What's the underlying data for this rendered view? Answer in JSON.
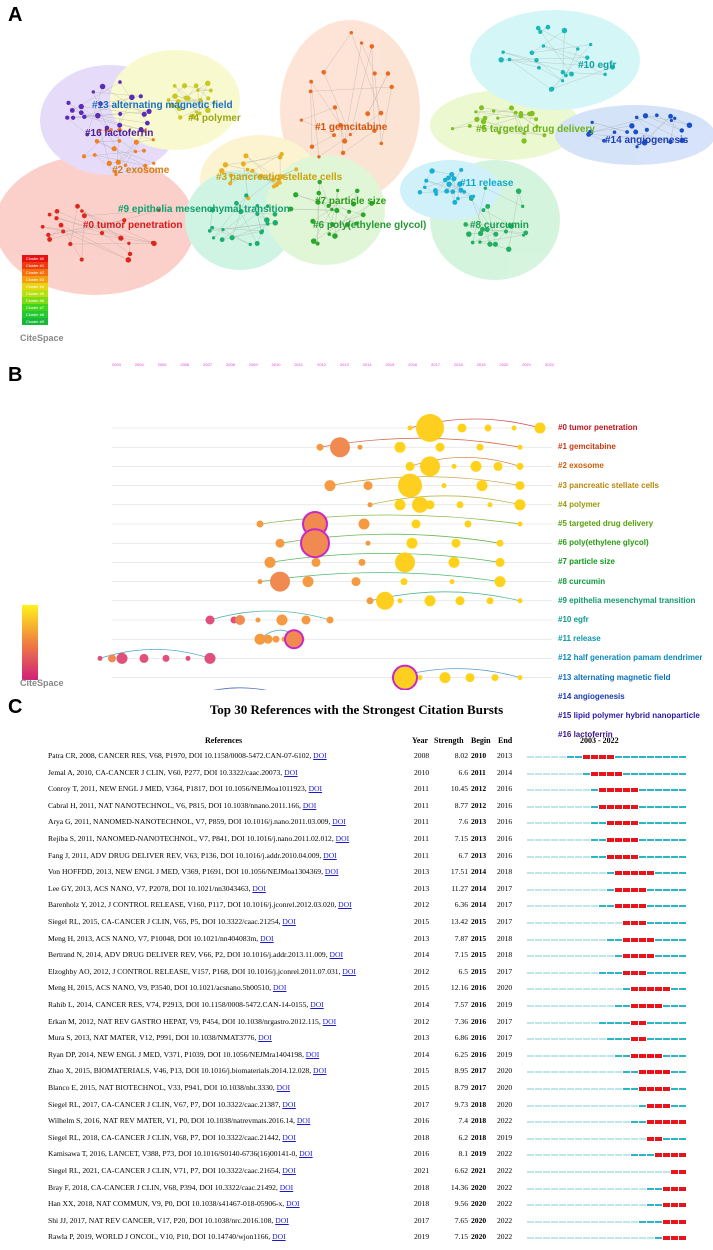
{
  "panelA": {
    "letter": "A",
    "clusters": [
      {
        "id": "c13",
        "label": "#13 alternating magnetic field",
        "color": "#1a6fc2"
      },
      {
        "id": "c16",
        "label": "#16 lactoferrin",
        "color": "#4b1a9e"
      },
      {
        "id": "c4",
        "label": "#4 polymer",
        "color": "#9aa615"
      },
      {
        "id": "c1",
        "label": "#1 gemcitabine",
        "color": "#d8520c"
      },
      {
        "id": "c10",
        "label": "#10 egfr",
        "color": "#0fa3a3"
      },
      {
        "id": "c5",
        "label": "#5 targeted drug delivery",
        "color": "#6db31a"
      },
      {
        "id": "c14",
        "label": "#14 angiogenesis",
        "color": "#1f3fb0"
      },
      {
        "id": "c2",
        "label": "#2 exosome",
        "color": "#d87b10"
      },
      {
        "id": "c3",
        "label": "#3 pancreatic stellate cells",
        "color": "#c9a20f"
      },
      {
        "id": "c11",
        "label": "#11 release",
        "color": "#16a8c8"
      },
      {
        "id": "c9",
        "label": "#9 epithelia mesenchymal transition",
        "color": "#12a070"
      },
      {
        "id": "c7",
        "label": "#7 particle size",
        "color": "#2a9d1a"
      },
      {
        "id": "c0",
        "label": "#0 tumor penetration",
        "color": "#d81a1a"
      },
      {
        "id": "c6",
        "label": "#6 poly(ethylene glycol)",
        "color": "#249a30"
      },
      {
        "id": "c8",
        "label": "#8 curcumin",
        "color": "#18a050"
      }
    ],
    "legend": [
      "Cluster #0",
      "Cluster #1",
      "Cluster #2",
      "Cluster #3",
      "Cluster #4",
      "Cluster #5",
      "Cluster #6",
      "Cluster #7",
      "Cluster #8",
      "Cluster #9"
    ],
    "legend_colors": [
      "#e81010",
      "#f03a10",
      "#f5700f",
      "#f2a00e",
      "#e8d410",
      "#b8e010",
      "#7fdc12",
      "#40d41a",
      "#24c830",
      "#18b83a"
    ],
    "logo": "CiteSpace"
  },
  "panelB": {
    "letter": "B",
    "years": [
      "2003",
      "2004",
      "2005",
      "2006",
      "2007",
      "2008",
      "2009",
      "2010",
      "2011",
      "2012",
      "2013",
      "2014",
      "2015",
      "2016",
      "2017",
      "2018",
      "2019",
      "2020",
      "2021",
      "2022"
    ],
    "timeline": [
      {
        "label": "#0 tumor penetration",
        "color": "#c0141a"
      },
      {
        "label": "#1 gemcitabine",
        "color": "#c8380f"
      },
      {
        "label": "#2 exosome",
        "color": "#c8600d"
      },
      {
        "label": "#3 pancreatic stellate cells",
        "color": "#b8860b"
      },
      {
        "label": "#4 polymer",
        "color": "#9a9a0a"
      },
      {
        "label": "#5 targeted drug delivery",
        "color": "#5aa00c"
      },
      {
        "label": "#6 poly(ethylene glycol)",
        "color": "#2a9a10"
      },
      {
        "label": "#7 particle size",
        "color": "#129a1a"
      },
      {
        "label": "#8 curcumin",
        "color": "#0e9a3a"
      },
      {
        "label": "#9 epithelia mesenchymal transition",
        "color": "#0e9a6a"
      },
      {
        "label": "#10 egfr",
        "color": "#0e9a8a"
      },
      {
        "label": "#11 release",
        "color": "#0e98a8"
      },
      {
        "label": "#12 half generation pamam dendrimer",
        "color": "#0e88b8"
      },
      {
        "label": "#13 alternating magnetic field",
        "color": "#1070c0"
      },
      {
        "label": "#14 angiogenesis",
        "color": "#1a3ab0"
      },
      {
        "label": "#15 lipid polymer hybrid nanoparticle",
        "color": "#2a1aa0"
      },
      {
        "label": "#16 lactoferrin",
        "color": "#3a148e"
      }
    ],
    "logo": "CiteSpace"
  },
  "panelC": {
    "letter": "C",
    "title": "Top 30 References with the Strongest Citation Bursts",
    "headers": {
      "references": "References",
      "year": "Year",
      "strength": "Strength",
      "begin": "Begin",
      "end": "End",
      "range": "2003 - 2022"
    },
    "doi_label": "DOI",
    "start_year": 2003,
    "end_year": 2022,
    "rows": [
      {
        "ref": "Patra CR, 2008, CANCER RES, V68, P1970, DOI 10.1158/0008-5472.CAN-07-6102,",
        "year": "2008",
        "strength": "8.02",
        "begin": "2010",
        "end": "2013"
      },
      {
        "ref": "Jemal A, 2010, CA-CANCER J CLIN, V60, P277, DOI 10.3322/caac.20073,",
        "year": "2010",
        "strength": "6.6",
        "begin": "2011",
        "end": "2014"
      },
      {
        "ref": "Conroy T, 2011, NEW ENGL J MED, V364, P1817, DOI 10.1056/NEJMoa1011923,",
        "year": "2011",
        "strength": "10.45",
        "begin": "2012",
        "end": "2016"
      },
      {
        "ref": "Cabral H, 2011, NAT NANOTECHNOL, V6, P815, DOI 10.1038/nnano.2011.166,",
        "year": "2011",
        "strength": "8.77",
        "begin": "2012",
        "end": "2016"
      },
      {
        "ref": "Arya G, 2011, NANOMED-NANOTECHNOL, V7, P859, DOI 10.1016/j.nano.2011.03.009,",
        "year": "2011",
        "strength": "7.6",
        "begin": "2013",
        "end": "2016"
      },
      {
        "ref": "Rejiba S, 2011, NANOMED-NANOTECHNOL, V7, P841, DOI 10.1016/j.nano.2011.02.012,",
        "year": "2011",
        "strength": "7.15",
        "begin": "2013",
        "end": "2016"
      },
      {
        "ref": "Fang J, 2011, ADV DRUG DELIVER REV, V63, P136, DOI 10.1016/j.addr.2010.04.009,",
        "year": "2011",
        "strength": "6.7",
        "begin": "2013",
        "end": "2016"
      },
      {
        "ref": "Von HOFFDD, 2013, NEW ENGL J MED, V369, P1691, DOI 10.1056/NEJMoa1304369,",
        "year": "2013",
        "strength": "17.51",
        "begin": "2014",
        "end": "2018"
      },
      {
        "ref": "Lee GY, 2013, ACS NANO, V7, P2078, DOI 10.1021/nn3043463,",
        "year": "2013",
        "strength": "11.27",
        "begin": "2014",
        "end": "2017"
      },
      {
        "ref": "Barenholz Y, 2012, J CONTROL RELEASE, V160, P117, DOI 10.1016/j.jconrel.2012.03.020,",
        "year": "2012",
        "strength": "6.36",
        "begin": "2014",
        "end": "2017"
      },
      {
        "ref": "Siegel RL, 2015, CA-CANCER J CLIN, V65, P5, DOI 10.3322/caac.21254,",
        "year": "2015",
        "strength": "13.42",
        "begin": "2015",
        "end": "2017"
      },
      {
        "ref": "Meng H, 2013, ACS NANO, V7, P10048, DOI 10.1021/nn404083m,",
        "year": "2013",
        "strength": "7.87",
        "begin": "2015",
        "end": "2018"
      },
      {
        "ref": "Bertrand N, 2014, ADV DRUG DELIVER REV, V66, P2, DOI 10.1016/j.addr.2013.11.009,",
        "year": "2014",
        "strength": "7.15",
        "begin": "2015",
        "end": "2018"
      },
      {
        "ref": "Elzoghby AO, 2012, J CONTROL RELEASE, V157, P168, DOI 10.1016/j.jconrel.2011.07.031,",
        "year": "2012",
        "strength": "6.5",
        "begin": "2015",
        "end": "2017"
      },
      {
        "ref": "Meng H, 2015, ACS NANO, V9, P3540, DOI 10.1021/acsnano.5b00510,",
        "year": "2015",
        "strength": "12.16",
        "begin": "2016",
        "end": "2020"
      },
      {
        "ref": "Rahib L, 2014, CANCER RES, V74, P2913, DOI 10.1158/0008-5472.CAN-14-0155,",
        "year": "2014",
        "strength": "7.57",
        "begin": "2016",
        "end": "2019"
      },
      {
        "ref": "Erkan M, 2012, NAT REV GASTRO HEPAT, V9, P454, DOI 10.1038/nrgastro.2012.115,",
        "year": "2012",
        "strength": "7.36",
        "begin": "2016",
        "end": "2017"
      },
      {
        "ref": "Mura S, 2013, NAT MATER, V12, P991, DOI 10.1038/NMAT3776,",
        "year": "2013",
        "strength": "6.86",
        "begin": "2016",
        "end": "2017"
      },
      {
        "ref": "Ryan DP, 2014, NEW ENGL J MED, V371, P1039, DOI 10.1056/NEJMra1404198,",
        "year": "2014",
        "strength": "6.25",
        "begin": "2016",
        "end": "2019"
      },
      {
        "ref": "Zhao X, 2015, BIOMATERIALS, V46, P13, DOI 10.1016/j.biomaterials.2014.12.028,",
        "year": "2015",
        "strength": "8.95",
        "begin": "2017",
        "end": "2020"
      },
      {
        "ref": "Blanco E, 2015, NAT BIOTECHNOL, V33, P941, DOI 10.1038/nbt.3330,",
        "year": "2015",
        "strength": "8.79",
        "begin": "2017",
        "end": "2020"
      },
      {
        "ref": "Siegel RL, 2017, CA-CANCER J CLIN, V67, P7, DOI 10.3322/caac.21387,",
        "year": "2017",
        "strength": "9.73",
        "begin": "2018",
        "end": "2020"
      },
      {
        "ref": "Wilhelm S, 2016, NAT REV MATER, V1, P0, DOI 10.1038/natrevmats.2016.14,",
        "year": "2016",
        "strength": "7.4",
        "begin": "2018",
        "end": "2022"
      },
      {
        "ref": "Siegel RL, 2018, CA-CANCER J CLIN, V68, P7, DOI 10.3322/caac.21442,",
        "year": "2018",
        "strength": "6.2",
        "begin": "2018",
        "end": "2019"
      },
      {
        "ref": "Kamisawa T, 2016, LANCET, V388, P73, DOI 10.1016/S0140-6736(16)00141-0,",
        "year": "2016",
        "strength": "8.1",
        "begin": "2019",
        "end": "2022"
      },
      {
        "ref": "Siegel RL, 2021, CA-CANCER J CLIN, V71, P7, DOI 10.3322/caac.21654,",
        "year": "2021",
        "strength": "6.62",
        "begin": "2021",
        "end": "2022"
      },
      {
        "ref": "Bray F, 2018, CA-CANCER J CLIN, V68, P394, DOI 10.3322/caac.21492,",
        "year": "2018",
        "strength": "14.36",
        "begin": "2020",
        "end": "2022"
      },
      {
        "ref": "Han XX, 2018, NAT COMMUN, V9, P0, DOI 10.1038/s41467-018-05906-x,",
        "year": "2018",
        "strength": "9.56",
        "begin": "2020",
        "end": "2022"
      },
      {
        "ref": "Shi JJ, 2017, NAT REV CANCER, V17, P20, DOI 10.1038/nrc.2016.108,",
        "year": "2017",
        "strength": "7.65",
        "begin": "2020",
        "end": "2022"
      },
      {
        "ref": "Rawla P, 2019, WORLD J ONCOL, V10, P10, DOI 10.14740/wjon1166,",
        "year": "2019",
        "strength": "7.15",
        "begin": "2020",
        "end": "2022"
      }
    ]
  }
}
